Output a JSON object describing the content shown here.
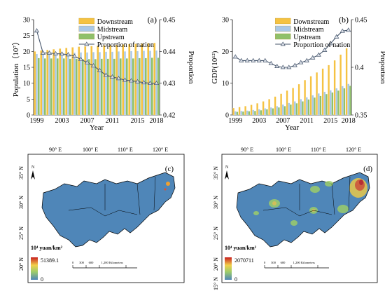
{
  "chart_data": [
    {
      "type": "bar",
      "panel_label": "(a)",
      "xlabel": "Year",
      "ylabel": "Population（10⁷）",
      "y2label": "Proportion",
      "ylim": [
        0,
        30
      ],
      "y2lim": [
        0.42,
        0.45
      ],
      "yticks": [
        "0",
        "5",
        "10",
        "15",
        "20",
        "25",
        "30"
      ],
      "y2ticks": [
        "0.42",
        "0.43",
        "0.44",
        "0.45"
      ],
      "x": [
        1999,
        2000,
        2001,
        2002,
        2003,
        2004,
        2005,
        2006,
        2007,
        2008,
        2009,
        2010,
        2011,
        2012,
        2013,
        2014,
        2015,
        2016,
        2017,
        2018
      ],
      "xticks": [
        "1999",
        "2003",
        "2007",
        "2011",
        "2015",
        "2018"
      ],
      "series": [
        {
          "name": "Downstream",
          "color": "#f5c242",
          "values": [
            20.0,
            20.3,
            20.5,
            20.7,
            20.9,
            21.1,
            21.3,
            21.5,
            21.6,
            21.7,
            21.8,
            21.9,
            22.0,
            22.1,
            22.2,
            22.3,
            22.4,
            22.5,
            22.6,
            22.7
          ]
        },
        {
          "name": "Midstream",
          "color": "#a9c8e8",
          "values": [
            19.2,
            19.3,
            19.4,
            19.5,
            19.5,
            19.6,
            19.6,
            19.7,
            19.7,
            19.8,
            19.8,
            19.9,
            19.9,
            20.0,
            20.0,
            20.1,
            20.1,
            20.2,
            20.2,
            20.3
          ]
        },
        {
          "name": "Upstream",
          "color": "#8fc06a",
          "values": [
            17.9,
            17.8,
            17.8,
            17.8,
            17.8,
            17.7,
            17.7,
            17.6,
            17.6,
            17.6,
            17.7,
            17.7,
            17.7,
            17.8,
            17.8,
            17.8,
            17.9,
            17.9,
            18.0,
            18.0
          ]
        },
        {
          "name": "Proportion of nation",
          "color": "#44546a",
          "axis": "right",
          "values": [
            0.4465,
            0.4395,
            0.4395,
            0.4393,
            0.4392,
            0.439,
            0.4385,
            0.4375,
            0.4365,
            0.4355,
            0.434,
            0.4325,
            0.432,
            0.4315,
            0.431,
            0.4308,
            0.4305,
            0.4302,
            0.43,
            0.43
          ]
        }
      ]
    },
    {
      "type": "bar",
      "panel_label": "(b)",
      "xlabel": "Year",
      "ylabel": "GDP(10¹²)",
      "y2label": "Proportion",
      "ylim": [
        0,
        30
      ],
      "y2lim": [
        0.35,
        0.45
      ],
      "yticks": [
        "0",
        "10",
        "20",
        "30"
      ],
      "y2ticks": [
        "0.35",
        "0.4",
        "0.45"
      ],
      "x": [
        1999,
        2000,
        2001,
        2002,
        2003,
        2004,
        2005,
        2006,
        2007,
        2008,
        2009,
        2010,
        2011,
        2012,
        2013,
        2014,
        2015,
        2016,
        2017,
        2018
      ],
      "xticks": [
        "1999",
        "2003",
        "2007",
        "2011",
        "2015",
        "2018"
      ],
      "series": [
        {
          "name": "Downstream",
          "color": "#f5c242",
          "values": [
            2.2,
            2.5,
            2.8,
            3.2,
            3.7,
            4.3,
            5.0,
            5.8,
            6.7,
            7.7,
            8.5,
            9.7,
            11.0,
            12.2,
            13.4,
            14.6,
            15.7,
            17.2,
            19.0,
            21.0
          ]
        },
        {
          "name": "Midstream",
          "color": "#a9c8e8",
          "values": [
            1.2,
            1.3,
            1.4,
            1.6,
            1.8,
            2.1,
            2.4,
            2.8,
            3.3,
            3.8,
            4.3,
            5.0,
            5.6,
            6.2,
            6.8,
            7.3,
            7.8,
            8.4,
            9.1,
            9.8
          ]
        },
        {
          "name": "Upstream",
          "color": "#8fc06a",
          "values": [
            1.0,
            1.1,
            1.2,
            1.3,
            1.5,
            1.8,
            2.1,
            2.4,
            2.8,
            3.3,
            3.7,
            4.3,
            4.9,
            5.5,
            6.0,
            6.6,
            7.1,
            7.7,
            8.4,
            9.2
          ]
        },
        {
          "name": "Proportion of nation",
          "color": "#44546a",
          "axis": "right",
          "values": [
            0.411,
            0.407,
            0.407,
            0.407,
            0.407,
            0.407,
            0.404,
            0.401,
            0.4,
            0.4,
            0.402,
            0.405,
            0.407,
            0.41,
            0.413,
            0.418,
            0.425,
            0.432,
            0.438,
            0.439
          ]
        }
      ]
    }
  ],
  "maps": [
    {
      "panel_label": "(c)",
      "legend_title": "10⁴ yuan/km²",
      "legend_max": "51389.1",
      "legend_min": "0",
      "scale_text": "0       300      600          1,200 Kilometers"
    },
    {
      "panel_label": "(d)",
      "legend_title": "10⁴ yuan/km²",
      "legend_max": "2070711",
      "legend_min": "0",
      "scale_text": "0       300      600          1,200 Kilometers"
    }
  ],
  "map_axes": {
    "lon_labels": [
      "90° E",
      "100° E",
      "110° E",
      "120° E"
    ],
    "lat_labels": [
      "35° N",
      "30° N",
      "25° N",
      "20° N"
    ],
    "lat_labels_d": [
      "35° N",
      "30° N",
      "25° N",
      "20° N",
      "15° N"
    ],
    "north_arrow": "N"
  },
  "colors": {
    "map_fill": "#4f86b8",
    "grid": "#d9d9d9"
  }
}
